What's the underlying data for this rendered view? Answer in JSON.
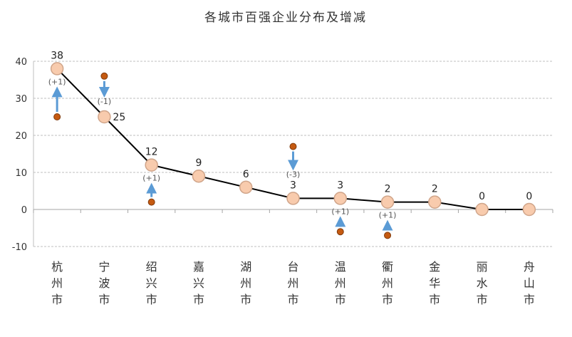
{
  "chart_data": {
    "type": "line",
    "title": "各城市百强企业分布及增减",
    "xlabel": "",
    "ylabel": "",
    "ylim": [
      -10,
      40
    ],
    "yticks": [
      -10,
      0,
      10,
      20,
      30,
      40
    ],
    "grid": true,
    "categories": [
      "杭州市",
      "宁波市",
      "绍兴市",
      "嘉兴市",
      "湖州市",
      "台州市",
      "温州市",
      "衢州市",
      "金华市",
      "丽水市",
      "舟山市"
    ],
    "values": [
      38,
      25,
      12,
      9,
      6,
      3,
      3,
      2,
      2,
      0,
      0
    ],
    "value_labels": [
      "38",
      "25",
      "12",
      "9",
      "6",
      "3",
      "3",
      "2",
      "2",
      "0",
      "0"
    ],
    "changes": [
      {
        "index": 0,
        "label": "(+1)",
        "direction": "up",
        "marker_y": 25
      },
      {
        "index": 1,
        "label": "(-1)",
        "direction": "down",
        "marker_y": 36
      },
      {
        "index": 2,
        "label": "(+1)",
        "direction": "up",
        "marker_y": 2
      },
      {
        "index": 5,
        "label": "(-3)",
        "direction": "down",
        "marker_y": 17
      },
      {
        "index": 6,
        "label": "(+1)",
        "direction": "up",
        "marker_y": -6
      },
      {
        "index": 7,
        "label": "(+1)",
        "direction": "up",
        "marker_y": -7
      }
    ],
    "colors": {
      "line": "#000000",
      "point_fill": "#f8cbad",
      "point_stroke": "#d0a58a",
      "change_marker": "#c55a11",
      "arrow": "#5b9bd5",
      "grid": "#bfbfbf"
    }
  }
}
